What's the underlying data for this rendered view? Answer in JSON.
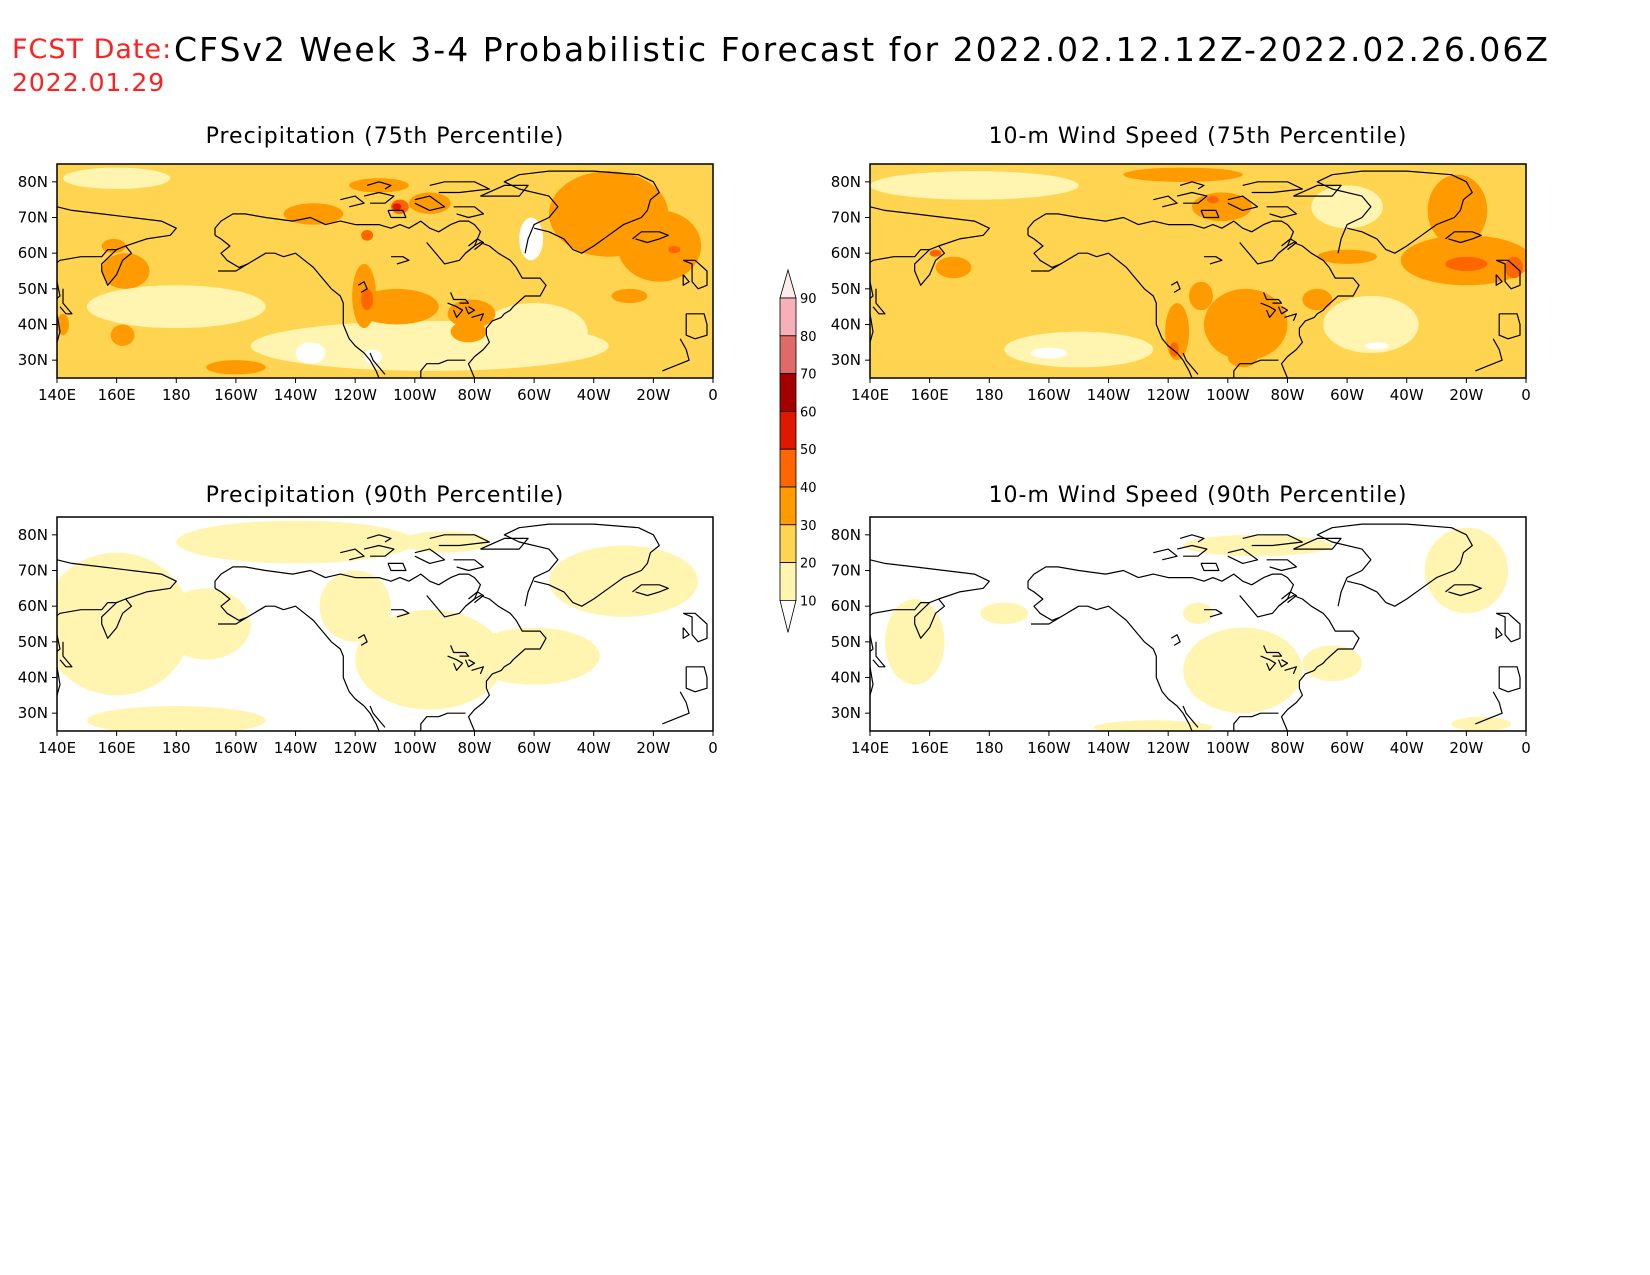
{
  "header": {
    "fcst_label": "FCST Date:",
    "fcst_date": "2022.01.29",
    "title": "CFSv2 Week 3-4 Probabilistic Forecast for 2022.02.12.12Z-2022.02.26.06Z",
    "label_color": "#ff2020"
  },
  "axes": {
    "lon_ticks": [
      "140E",
      "160E",
      "180",
      "160W",
      "140W",
      "120W",
      "100W",
      "80W",
      "60W",
      "40W",
      "20W",
      "0"
    ],
    "lat_ticks": [
      "80N",
      "70N",
      "60N",
      "50N",
      "40N",
      "30N"
    ],
    "lon_range_deg_east": [
      140,
      360
    ],
    "lat_range_deg_north": [
      25,
      85
    ]
  },
  "panels": [
    {
      "id": "precip-75",
      "title": "Precipitation (75th Percentile)",
      "variable": "Precipitation",
      "percentile": "75th",
      "dominant_category": "20-30",
      "secondary_category": "30-40"
    },
    {
      "id": "wind-75",
      "title": "10-m Wind Speed (75th Percentile)",
      "variable": "10-m Wind Speed",
      "percentile": "75th",
      "dominant_category": "20-30",
      "secondary_category": "30-40"
    },
    {
      "id": "precip-90",
      "title": "Precipitation (90th Percentile)",
      "variable": "Precipitation",
      "percentile": "90th",
      "dominant_category": "10-20",
      "secondary_category": "<10"
    },
    {
      "id": "wind-90",
      "title": "10-m Wind Speed (90th Percentile)",
      "variable": "10-m Wind Speed",
      "percentile": "90th",
      "dominant_category": "<10",
      "secondary_category": "10-20"
    }
  ],
  "colorbar": {
    "labels": [
      "90",
      "80",
      "70",
      "60",
      "50",
      "40",
      "30",
      "20",
      "10"
    ],
    "colors": [
      "#f7b0b8",
      "#e06a6a",
      "#a40000",
      "#e01800",
      "#ff6600",
      "#ff9a00",
      "#ffd450",
      "#fff5b0"
    ],
    "below_min_color": "#ffffff",
    "above_max_color": "#fdecec"
  }
}
